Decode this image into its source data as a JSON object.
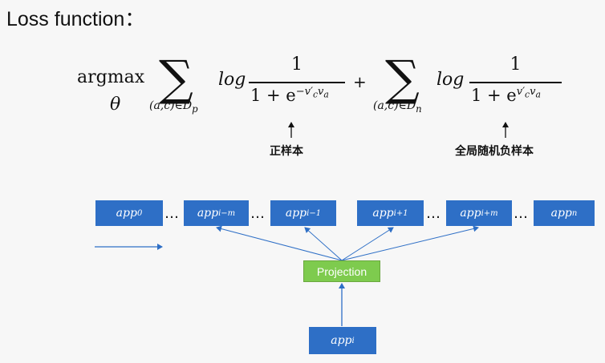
{
  "title": "Loss function：",
  "formula": {
    "argmax": "argmax",
    "theta": "θ",
    "sigma": "∑",
    "sub_pos": "(a,c)∈D",
    "sub_pos_idx": "p",
    "sub_neg": "(a,c)∈D",
    "sub_neg_idx": "n",
    "log": "log",
    "numerator": "1",
    "den_prefix": "1 + e",
    "exp_pos": "−v′",
    "exp_neg": "v′",
    "exp_c": "c",
    "exp_v": "v",
    "exp_a": "a",
    "plus": "+"
  },
  "captions": {
    "positive": "正样本",
    "negative": "全局随机负样本"
  },
  "boxes": [
    {
      "base": "app",
      "sub": "0"
    },
    {
      "base": "app",
      "sub": "i−m"
    },
    {
      "base": "app",
      "sub": "i−1"
    },
    {
      "base": "app",
      "sub": "i+1"
    },
    {
      "base": "app",
      "sub": "i+m"
    },
    {
      "base": "app",
      "sub": "n"
    }
  ],
  "dots": "…",
  "projection_label": "Projection",
  "input_box": {
    "base": "app",
    "sub": "i"
  }
}
